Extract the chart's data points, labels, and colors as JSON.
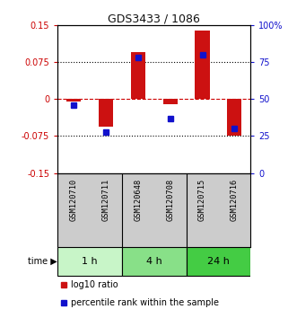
{
  "title": "GDS3433 / 1086",
  "samples": [
    "GSM120710",
    "GSM120711",
    "GSM120648",
    "GSM120708",
    "GSM120715",
    "GSM120716"
  ],
  "log10_ratio": [
    -0.005,
    -0.055,
    0.095,
    -0.01,
    0.14,
    -0.075
  ],
  "percentile_rank": [
    46,
    28,
    78,
    37,
    80,
    30
  ],
  "ylim_left": [
    -0.15,
    0.15
  ],
  "ylim_right": [
    0,
    100
  ],
  "yticks_left": [
    -0.15,
    -0.075,
    0,
    0.075,
    0.15
  ],
  "ytick_labels_left": [
    "-0.15",
    "-0.075",
    "0",
    "0.075",
    "0.15"
  ],
  "yticks_right": [
    0,
    25,
    50,
    75,
    100
  ],
  "ytick_labels_right": [
    "0",
    "25",
    "50",
    "75",
    "100%"
  ],
  "groups": [
    {
      "label": "1 h",
      "samples": [
        0,
        1
      ],
      "color": "#c8f5c8"
    },
    {
      "label": "4 h",
      "samples": [
        2,
        3
      ],
      "color": "#88e088"
    },
    {
      "label": "24 h",
      "samples": [
        4,
        5
      ],
      "color": "#44cc44"
    }
  ],
  "bar_color": "#cc1111",
  "percentile_color": "#1111cc",
  "bar_width": 0.45,
  "background_color": "#ffffff",
  "plot_bg": "#ffffff",
  "label_area_bg": "#cccccc",
  "zero_line_color": "#cc0000",
  "title_color": "#111111",
  "legend_items": [
    "log10 ratio",
    "percentile rank within the sample"
  ]
}
